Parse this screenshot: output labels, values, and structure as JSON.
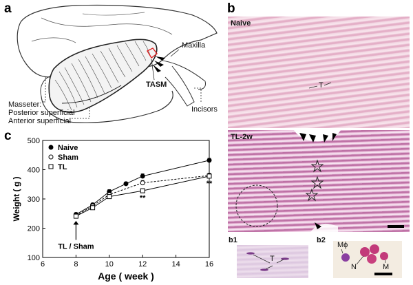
{
  "panels": {
    "a": "a",
    "b": "b",
    "c": "c",
    "b1": "b1",
    "b2": "b2"
  },
  "panel_a": {
    "maxilla": "Maxilla",
    "tasm": "TASM",
    "incisors": "Incisors",
    "masseter": "Masseter:",
    "posterior": "Posterior superficial",
    "anterior": "Anterior superficial"
  },
  "panel_b": {
    "naive": "Naive",
    "tl2w": "TL-2w",
    "t_label": "T",
    "b1_t_label": "T",
    "b2_mphi": "Mϕ",
    "b2_n": "N",
    "b2_m": "M"
  },
  "chart_data": {
    "type": "line",
    "xlabel": "Age ( week )",
    "ylabel": "Weight ( g )",
    "xlim": [
      6,
      16
    ],
    "ylim": [
      100,
      500
    ],
    "xticks": [
      6,
      8,
      10,
      12,
      14,
      16
    ],
    "yticks": [
      100,
      200,
      300,
      400,
      500
    ],
    "legend_position": "top-left",
    "series": [
      {
        "name": "Naive",
        "marker": "filled-circle",
        "x": [
          8,
          9,
          10,
          11,
          12,
          16
        ],
        "y": [
          247,
          280,
          325,
          352,
          378,
          432
        ],
        "err": [
          6,
          6,
          7,
          6,
          8,
          7
        ]
      },
      {
        "name": "Sham",
        "marker": "open-circle",
        "x": [
          8,
          9,
          10,
          12,
          16
        ],
        "y": [
          243,
          276,
          315,
          355,
          380
        ],
        "err": [
          6,
          6,
          6,
          8,
          8
        ]
      },
      {
        "name": "TL",
        "marker": "open-square",
        "x": [
          8,
          9,
          10,
          12,
          16
        ],
        "y": [
          241,
          270,
          308,
          328,
          378
        ],
        "err": [
          6,
          6,
          6,
          7,
          8
        ]
      }
    ],
    "annotations": [
      {
        "text": "**",
        "x": 12,
        "y": 295
      },
      {
        "text": "**",
        "x": 16,
        "y": 345
      },
      {
        "text": "TL / Sham",
        "x": 8,
        "y": 130
      }
    ]
  }
}
